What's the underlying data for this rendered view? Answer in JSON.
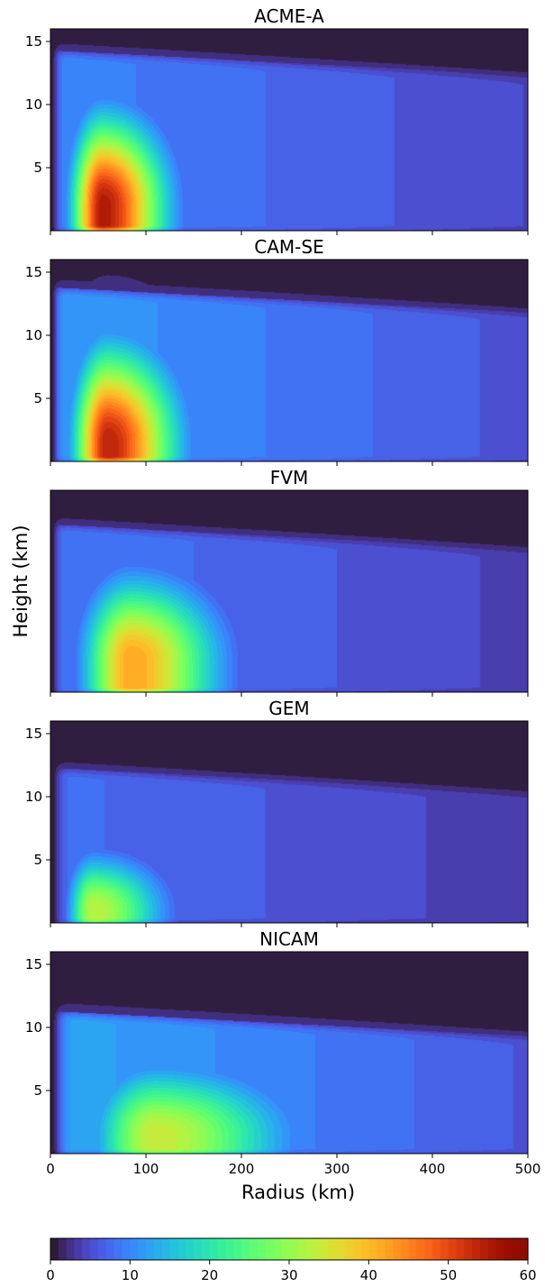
{
  "figure": {
    "ylabel": "Height (km)",
    "xlabel": "Radius (km)",
    "colorbar_ticks": [
      "0",
      "10",
      "20",
      "30",
      "40",
      "50",
      "60"
    ]
  },
  "chart_data": {
    "type": "heatmap",
    "field": "azimuthally averaged wind speed (contour fill)",
    "xlabel": "Radius (km)",
    "ylabel": "Height (km)",
    "xlim": [
      0,
      500
    ],
    "ylim": [
      0,
      16
    ],
    "xticks": [
      0,
      100,
      200,
      300,
      400,
      500
    ],
    "yticks": [
      5,
      10,
      15
    ],
    "colorbar": {
      "range": [
        0,
        60
      ],
      "ticks": [
        0,
        10,
        20,
        30,
        40,
        50,
        60
      ],
      "colormap": "turbo"
    },
    "panels": [
      {
        "title": "ACME-A",
        "show_yticks": true,
        "peak_value": 55,
        "peak_radius": 55,
        "peak_height": 2.0,
        "radial_width": 62,
        "core_height": 6.5,
        "tropopause": 13.5,
        "outer_value": 10,
        "inner_edge": 8
      },
      {
        "title": "CAM-SE",
        "show_yticks": true,
        "peak_value": 54,
        "peak_radius": 60,
        "peak_height": 1.5,
        "radial_width": 68,
        "core_height": 7.0,
        "tropopause": 13.0,
        "outer_value": 12,
        "inner_edge": 8
      },
      {
        "title": "FVM",
        "show_yticks": false,
        "peak_value": 42,
        "peak_radius": 85,
        "peak_height": 2.5,
        "radial_width": 85,
        "core_height": 6.0,
        "tropopause": 12.5,
        "outer_value": 9,
        "inner_edge": 8
      },
      {
        "title": "GEM",
        "show_yticks": true,
        "peak_value": 33,
        "peak_radius": 45,
        "peak_height": 1.0,
        "radial_width": 70,
        "core_height": 4.0,
        "tropopause": 11.5,
        "outer_value": 8,
        "inner_edge": 10
      },
      {
        "title": "NICAM",
        "show_yticks": true,
        "peak_value": 34,
        "peak_radius": 110,
        "peak_height": 1.5,
        "radial_width": 130,
        "core_height": 5.0,
        "tropopause": 10.5,
        "outer_value": 13,
        "inner_edge": 12
      }
    ]
  }
}
